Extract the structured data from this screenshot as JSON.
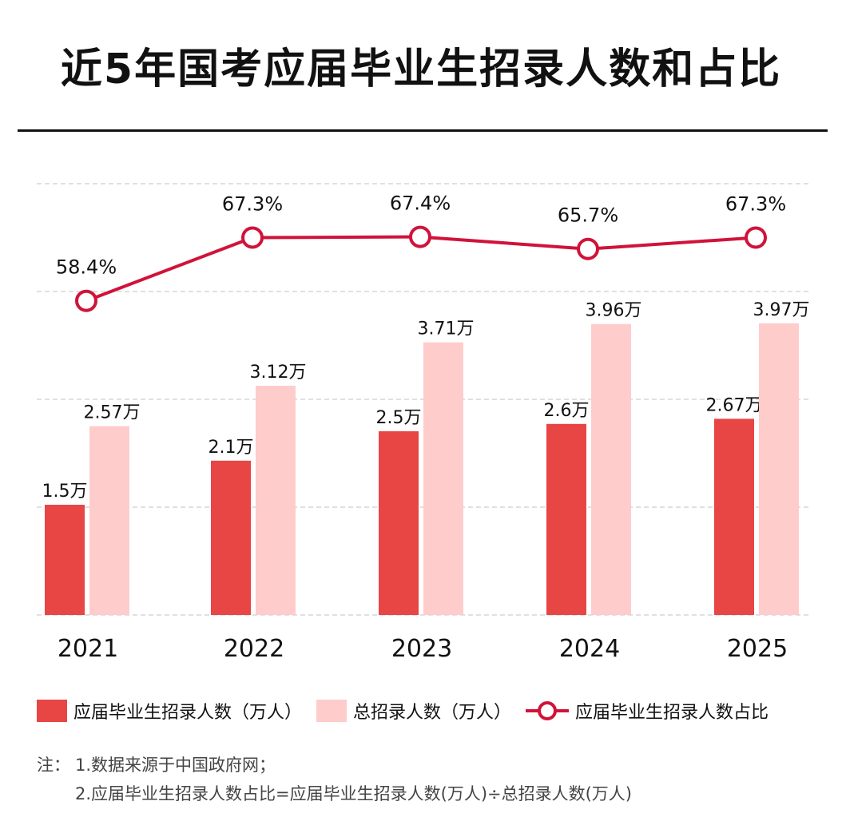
{
  "title": "近5年国考应届毕业生招录人数和占比",
  "colors": {
    "grad_bar": "#e84545",
    "total_bar": "#ffcccc",
    "line": "#d0133a"
  },
  "chart_data": {
    "type": "bar",
    "title": "近5年国考应届毕业生招录人数和占比",
    "categories": [
      "2021",
      "2022",
      "2023",
      "2024",
      "2025"
    ],
    "series": [
      {
        "name": "应届毕业生招录人数（万人）",
        "type": "bar",
        "values": [
          1.5,
          2.1,
          2.5,
          2.6,
          2.67
        ],
        "labels": [
          "1.5万",
          "2.1万",
          "2.5万",
          "2.6万",
          "2.67万"
        ]
      },
      {
        "name": "总招录人数（万人）",
        "type": "bar",
        "values": [
          2.57,
          3.12,
          3.71,
          3.96,
          3.97
        ],
        "labels": [
          "2.57万",
          "3.12万",
          "3.71万",
          "3.96万",
          "3.97万"
        ]
      },
      {
        "name": "应届毕业生招录人数占比",
        "type": "line",
        "values": [
          58.4,
          67.3,
          67.4,
          65.7,
          67.3
        ],
        "labels": [
          "58.4%",
          "67.3%",
          "67.4%",
          "65.7%",
          "67.3%"
        ]
      }
    ],
    "grid": true,
    "legend_position": "bottom"
  },
  "legend": {
    "grad": "应届毕业生招录人数（万人）",
    "total": "总招录人数（万人）",
    "ratio": "应届毕业生招录人数占比"
  },
  "notes": {
    "prefix": "注：",
    "line1": "1.数据来源于中国政府网；",
    "line2": "2.应届毕业生招录人数占比=应届毕业生招录人数(万人)÷总招录人数(万人)"
  }
}
